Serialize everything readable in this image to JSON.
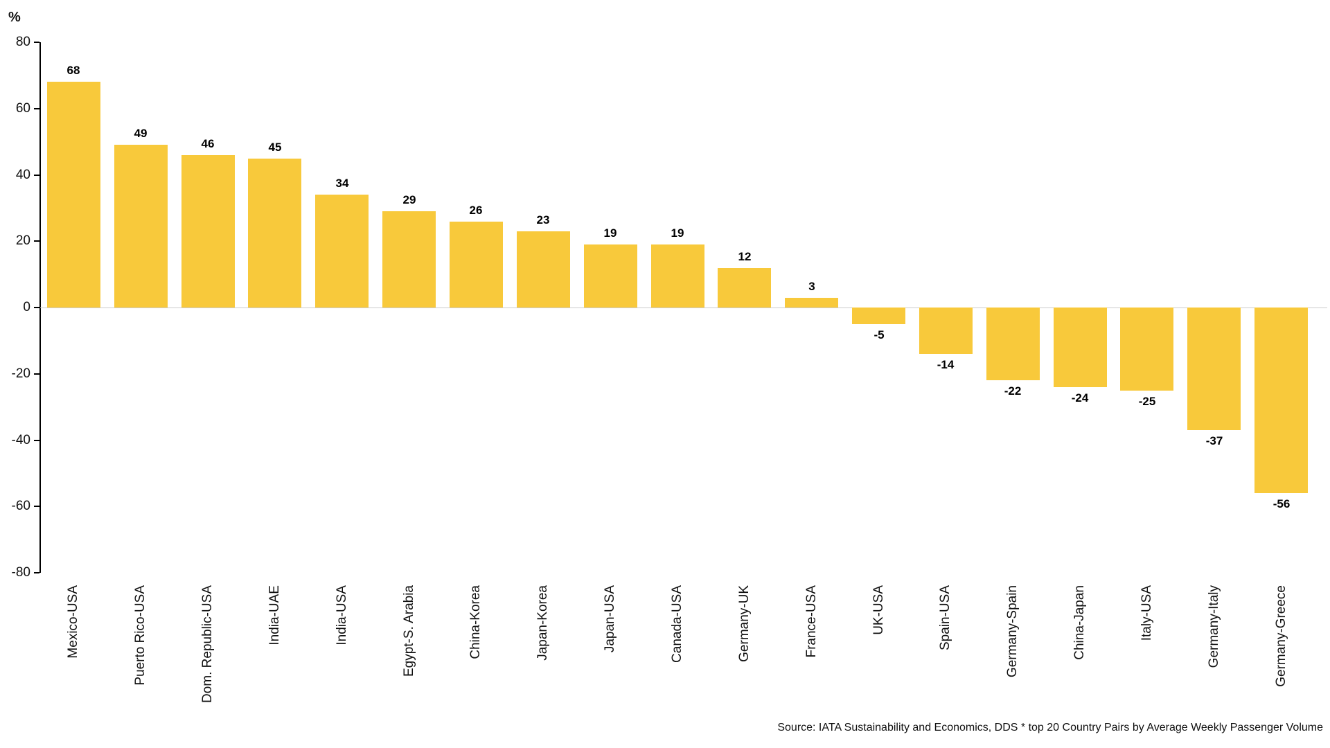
{
  "chart_data": {
    "type": "bar",
    "title": "",
    "xlabel": "",
    "ylabel": "%",
    "categories": [
      "Mexico-USA",
      "Puerto Rico-USA",
      "Dom. Republic-USA",
      "India-UAE",
      "India-USA",
      "Egypt-S. Arabia",
      "China-Korea",
      "Japan-Korea",
      "Japan-USA",
      "Canada-USA",
      "Germany-UK",
      "France-USA",
      "UK-USA",
      "Spain-USA",
      "Germany-Spain",
      "China-Japan",
      "Italy-USA",
      "Germany-Italy",
      "Germany-Greece"
    ],
    "values": [
      68,
      49,
      46,
      45,
      34,
      29,
      26,
      23,
      19,
      19,
      12,
      3,
      -5,
      -14,
      -22,
      -24,
      -25,
      -37,
      -56
    ],
    "ylim": [
      -80,
      80
    ],
    "yticks": [
      80,
      60,
      40,
      20,
      0,
      -20,
      -40,
      -60,
      -80
    ],
    "bar_color": "#F8C93B",
    "zero_line_color": "#cccccc",
    "grid": "zero-line-only",
    "legend": "none",
    "value_labels": "on",
    "category_label_rotation": "vertical-bottom-to-top"
  },
  "footer": {
    "source": "Source: IATA Sustainability and Economics, DDS * top 20 Country Pairs by Average Weekly Passenger Volume"
  }
}
